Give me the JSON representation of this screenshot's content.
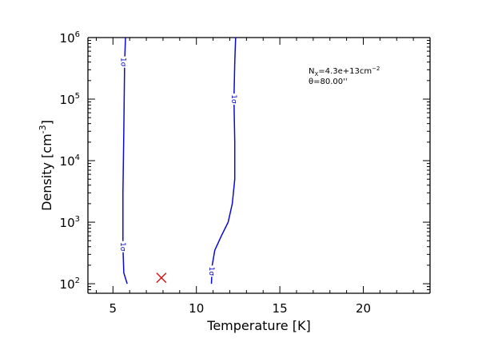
{
  "chart_data": {
    "type": "line",
    "xlabel": "Temperature [K]",
    "ylabel": "Density [cm^-3]",
    "xlim": [
      3.5,
      24
    ],
    "ylim": [
      70,
      1000000
    ],
    "yscale": "log",
    "x_ticks": [
      5,
      10,
      15,
      20
    ],
    "x_tick_labels": [
      "5",
      "10",
      "15",
      "20"
    ],
    "y_ticks": [
      100,
      1000,
      10000,
      100000,
      1000000
    ],
    "y_tick_labels": [
      {
        "base": "10",
        "exp": "2"
      },
      {
        "base": "10",
        "exp": "3"
      },
      {
        "base": "10",
        "exp": "4"
      },
      {
        "base": "10",
        "exp": "5"
      },
      {
        "base": "10",
        "exp": "6"
      }
    ],
    "annotations": {
      "column_density": {
        "prefix": "N",
        "sub": "X",
        "value": "=4.3e+13cm",
        "sup": "−2"
      },
      "theta": {
        "symbol": "θ",
        "value": "=80.00''"
      }
    },
    "contour_label": "1σ",
    "color": "#0a0ad0",
    "marker_color": "#d01010",
    "series": [
      {
        "points": [
          [
            5.85,
            100
          ],
          [
            5.65,
            150
          ],
          [
            5.6,
            400
          ],
          [
            5.6,
            3000
          ],
          [
            5.65,
            30000
          ],
          [
            5.7,
            400000
          ],
          [
            5.75,
            1000000
          ]
        ]
      },
      {
        "points": [
          [
            10.9,
            100
          ],
          [
            10.95,
            200
          ],
          [
            11.1,
            350
          ],
          [
            11.5,
            600
          ],
          [
            11.9,
            1000
          ],
          [
            12.15,
            2000
          ],
          [
            12.3,
            5000
          ],
          [
            12.3,
            20000
          ],
          [
            12.25,
            100000
          ],
          [
            12.3,
            400000
          ],
          [
            12.35,
            1000000
          ]
        ]
      }
    ],
    "contour_labels": [
      {
        "series": 0,
        "x": 5.63,
        "y": 400000
      },
      {
        "series": 0,
        "x": 5.6,
        "y": 400
      },
      {
        "series": 1,
        "x": 12.27,
        "y": 100000
      },
      {
        "series": 1,
        "x": 10.93,
        "y": 160
      }
    ],
    "marker": {
      "symbol": "X",
      "x": 7.9,
      "y": 125
    }
  }
}
